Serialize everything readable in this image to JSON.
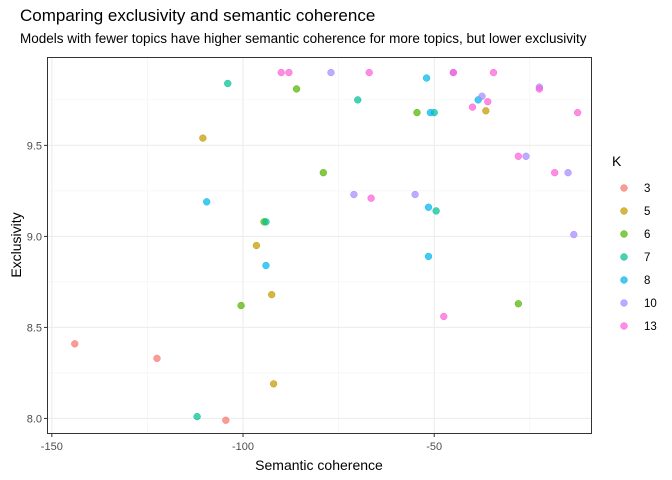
{
  "chart_data": {
    "type": "scatter",
    "title": "Comparing exclusivity and semantic coherence",
    "subtitle": "Models with fewer topics have higher semantic coherence for more topics, but lower exclusivity",
    "xlabel": "Semantic coherence",
    "ylabel": "Exclusivity",
    "xlim": [
      -151,
      -9
    ],
    "ylim": [
      7.92,
      9.98
    ],
    "xticks": [
      -150,
      -100,
      -50
    ],
    "yticks": [
      8.0,
      8.5,
      9.0,
      9.5
    ],
    "grid": true,
    "legend": {
      "title": "K",
      "position": "right"
    },
    "series": [
      {
        "name": "3",
        "color": "#F8766D",
        "points": [
          [
            -144,
            8.41
          ],
          [
            -122.5,
            8.33
          ],
          [
            -104.5,
            7.99
          ]
        ]
      },
      {
        "name": "5",
        "color": "#C49A00",
        "points": [
          [
            -110.5,
            9.54
          ],
          [
            -96.5,
            8.95
          ],
          [
            -92.5,
            8.68
          ],
          [
            -92,
            8.19
          ],
          [
            -36.5,
            9.69
          ]
        ]
      },
      {
        "name": "6",
        "color": "#53B400",
        "points": [
          [
            -86,
            9.81
          ],
          [
            -79,
            9.35
          ],
          [
            -94.5,
            9.08
          ],
          [
            -100.5,
            8.62
          ],
          [
            -54.5,
            9.68
          ],
          [
            -28,
            8.63
          ]
        ]
      },
      {
        "name": "7",
        "color": "#00C094",
        "points": [
          [
            -104,
            9.84
          ],
          [
            -70,
            9.75
          ],
          [
            -94,
            9.08
          ],
          [
            -112,
            8.01
          ],
          [
            -50,
            9.68
          ],
          [
            -49.5,
            9.14
          ]
        ]
      },
      {
        "name": "8",
        "color": "#00B6EB",
        "points": [
          [
            -109.5,
            9.19
          ],
          [
            -94,
            8.84
          ],
          [
            -52,
            9.87
          ],
          [
            -51,
            9.68
          ],
          [
            -51.5,
            9.16
          ],
          [
            -51.5,
            8.89
          ],
          [
            -38.5,
            9.75
          ]
        ]
      },
      {
        "name": "10",
        "color": "#A58AFF",
        "points": [
          [
            -77,
            9.9
          ],
          [
            -71,
            9.23
          ],
          [
            -55,
            9.23
          ],
          [
            -45,
            9.9
          ],
          [
            -37.5,
            9.77
          ],
          [
            -26,
            9.44
          ],
          [
            -22.5,
            9.82
          ],
          [
            -15,
            9.35
          ],
          [
            -13.5,
            9.01
          ]
        ]
      },
      {
        "name": "13",
        "color": "#FB61D7",
        "points": [
          [
            -90,
            9.9
          ],
          [
            -88,
            9.9
          ],
          [
            -67,
            9.9
          ],
          [
            -66.5,
            9.21
          ],
          [
            -47.5,
            8.56
          ],
          [
            -45,
            9.9
          ],
          [
            -40,
            9.71
          ],
          [
            -36,
            9.74
          ],
          [
            -34.5,
            9.9
          ],
          [
            -28,
            9.44
          ],
          [
            -22.5,
            9.81
          ],
          [
            -18.5,
            9.35
          ],
          [
            -12.5,
            9.68
          ]
        ]
      }
    ]
  }
}
